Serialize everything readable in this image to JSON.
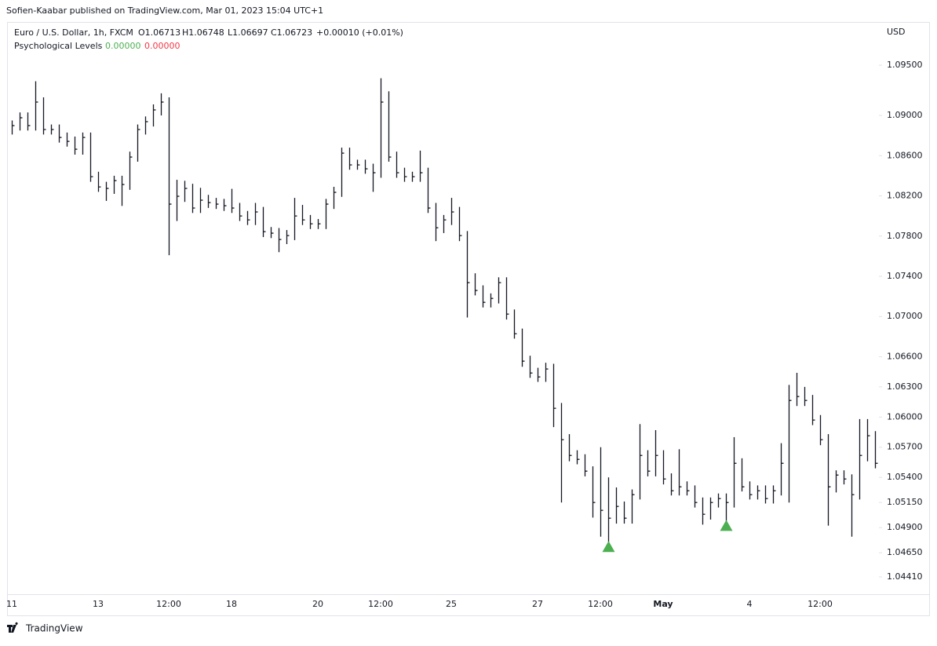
{
  "header": {
    "publisher": "Sofien-Kaabar published on TradingView.com, Mar 01, 2023 15:04 UTC+1",
    "symbol": "Euro / U.S. Dollar, 1h, FXCM",
    "ohlc": [
      "O1.06713",
      "H1.06748",
      "L1.06697",
      "C1.06723"
    ],
    "change": "+0.00010 (+0.01%)",
    "indicator": "Psychological Levels",
    "indicator_values": [
      "0.00000",
      "0.00000"
    ],
    "currency": "USD"
  },
  "footer": "TradingView",
  "chart_data": {
    "type": "ohlc",
    "color": "#131722",
    "signal_color": "#4caf50",
    "categories": [
      "11",
      null,
      null,
      null,
      null,
      null,
      null,
      null,
      null,
      null,
      null,
      "13",
      null,
      null,
      null,
      null,
      null,
      null,
      null,
      null,
      "12:00",
      null,
      null,
      null,
      null,
      null,
      null,
      null,
      "18",
      null,
      null,
      null,
      null,
      null,
      null,
      null,
      null,
      null,
      null,
      "20",
      null,
      null,
      null,
      null,
      null,
      null,
      null,
      "12:00",
      null,
      null,
      null,
      null,
      null,
      null,
      null,
      null,
      "25",
      null,
      null,
      null,
      null,
      null,
      null,
      null,
      null,
      null,
      null,
      "27",
      null,
      null,
      null,
      null,
      null,
      null,
      null,
      "12:00",
      null,
      null,
      null,
      null,
      null,
      null,
      null,
      "May",
      null,
      null,
      null,
      null,
      null,
      null,
      null,
      null,
      null,
      null,
      "4",
      null,
      null,
      null,
      null,
      null,
      null,
      null,
      null,
      "12:00",
      null,
      null,
      null,
      null,
      null,
      null,
      null
    ],
    "high": [
      1.0895,
      1.0903,
      1.0903,
      1.0934,
      1.0918,
      1.0891,
      1.0891,
      1.0883,
      1.0879,
      1.0883,
      1.0883,
      1.0844,
      1.0834,
      1.084,
      1.084,
      1.0864,
      1.0891,
      1.0899,
      1.0911,
      1.0922,
      1.0918,
      1.0836,
      1.0835,
      1.0832,
      1.0828,
      1.0821,
      1.0818,
      1.0817,
      1.0827,
      1.0813,
      1.0805,
      1.0813,
      1.0809,
      1.0789,
      1.0788,
      1.0786,
      1.0818,
      1.0811,
      1.0801,
      1.0797,
      1.0817,
      1.0829,
      1.0868,
      1.0868,
      1.0856,
      1.0856,
      1.0852,
      1.0937,
      1.0924,
      1.0864,
      1.0848,
      1.0844,
      1.0865,
      1.0848,
      1.0813,
      1.0801,
      1.0818,
      1.0809,
      1.0785,
      1.0743,
      1.0731,
      1.0723,
      1.0739,
      1.0739,
      1.0707,
      1.0688,
      1.0661,
      1.0649,
      1.0654,
      1.0653,
      1.0614,
      1.0583,
      1.0567,
      1.0563,
      1.0551,
      1.057,
      1.054,
      1.053,
      1.0516,
      1.0528,
      1.0593,
      1.0567,
      1.0587,
      1.0567,
      1.0544,
      1.0568,
      1.0536,
      1.0532,
      1.052,
      1.052,
      1.0524,
      1.0524,
      1.058,
      1.0559,
      1.0536,
      1.0532,
      1.0532,
      1.0532,
      1.0574,
      1.0632,
      1.0644,
      1.063,
      1.0622,
      1.0602,
      1.0583,
      1.0547,
      1.0547,
      1.0543,
      1.0598,
      1.0598,
      1.0586
    ],
    "low": [
      1.0881,
      1.0885,
      1.0885,
      1.0885,
      1.0881,
      1.0881,
      1.0873,
      1.0869,
      1.0861,
      1.0861,
      1.0834,
      1.0824,
      1.0815,
      1.0822,
      1.081,
      1.0826,
      1.0854,
      1.0881,
      1.0889,
      1.09,
      1.0761,
      1.0795,
      1.0814,
      1.0803,
      1.0803,
      1.0808,
      1.0807,
      1.0805,
      1.0803,
      1.0795,
      1.0791,
      1.0791,
      1.0779,
      1.0778,
      1.0764,
      1.0772,
      1.0776,
      1.0791,
      1.0787,
      1.0787,
      1.0787,
      1.0807,
      1.0819,
      1.0846,
      1.0846,
      1.0842,
      1.0824,
      1.0838,
      1.0854,
      1.0838,
      1.0834,
      1.0834,
      1.0834,
      1.0803,
      1.0775,
      1.0783,
      1.0791,
      1.0775,
      1.0699,
      1.0721,
      1.0709,
      1.0709,
      1.0713,
      1.0697,
      1.0678,
      1.065,
      1.0639,
      1.0635,
      1.0635,
      1.059,
      1.0515,
      1.0556,
      1.0553,
      1.0541,
      1.05,
      1.0481,
      1.0472,
      1.0494,
      1.0494,
      1.0494,
      1.0518,
      1.0541,
      1.0541,
      1.0533,
      1.0522,
      1.0522,
      1.0522,
      1.051,
      1.0493,
      1.0498,
      1.051,
      1.0493,
      1.051,
      1.0526,
      1.0518,
      1.0518,
      1.0514,
      1.0514,
      1.0522,
      1.0515,
      1.0611,
      1.0611,
      1.0592,
      1.0572,
      1.0492,
      1.0525,
      1.0533,
      1.0481,
      1.0518,
      1.0556,
      1.0549
    ],
    "close": [
      1.08899,
      1.08977,
      1.08899,
      1.09133,
      1.0886,
      1.0886,
      1.08781,
      1.08742,
      1.08664,
      1.08781,
      1.08391,
      1.08289,
      1.08274,
      1.08352,
      1.08313,
      1.08586,
      1.0886,
      1.08938,
      1.09055,
      1.09133,
      1.08118,
      1.08196,
      1.08274,
      1.08079,
      1.08157,
      1.08133,
      1.08118,
      1.08102,
      1.08079,
      1.08,
      1.07961,
      1.0804,
      1.07844,
      1.07829,
      1.07766,
      1.07805,
      1.08,
      1.07961,
      1.07922,
      1.07922,
      1.08118,
      1.08235,
      1.08625,
      1.08508,
      1.08508,
      1.08469,
      1.0843,
      1.09133,
      1.08586,
      1.0843,
      1.08391,
      1.08391,
      1.0843,
      1.08079,
      1.07883,
      1.07961,
      1.0804,
      1.07805,
      1.07337,
      1.07259,
      1.07141,
      1.0718,
      1.07337,
      1.07024,
      1.06829,
      1.06556,
      1.06438,
      1.06399,
      1.06478,
      1.06087,
      1.05775,
      1.05618,
      1.05579,
      1.05462,
      1.0515,
      1.05072,
      1.04994,
      1.05111,
      1.04994,
      1.05228,
      1.05618,
      1.05462,
      1.05618,
      1.05384,
      1.05267,
      1.05306,
      1.05267,
      1.0515,
      1.05033,
      1.0515,
      1.05189,
      1.0515,
      1.0554,
      1.05306,
      1.05228,
      1.05267,
      1.05189,
      1.05267,
      1.0554,
      1.06165,
      1.06204,
      1.06165,
      1.0597,
      1.05775,
      1.05306,
      1.05423,
      1.05384,
      1.05228,
      1.05618,
      1.05814,
      1.0554
    ],
    "signals": [
      null,
      null,
      null,
      null,
      null,
      null,
      null,
      null,
      null,
      null,
      null,
      null,
      null,
      null,
      null,
      null,
      null,
      null,
      null,
      null,
      null,
      null,
      null,
      null,
      null,
      null,
      null,
      null,
      null,
      null,
      null,
      null,
      null,
      null,
      null,
      null,
      null,
      null,
      null,
      null,
      null,
      null,
      null,
      null,
      null,
      null,
      null,
      null,
      null,
      null,
      null,
      null,
      null,
      null,
      null,
      null,
      null,
      null,
      null,
      null,
      null,
      null,
      null,
      null,
      null,
      null,
      null,
      null,
      null,
      null,
      null,
      null,
      null,
      null,
      null,
      null,
      1.0472,
      null,
      null,
      null,
      null,
      null,
      null,
      null,
      null,
      null,
      null,
      null,
      null,
      null,
      null,
      1.0493,
      null,
      null,
      null,
      null,
      null,
      null,
      null,
      null,
      null,
      null,
      null,
      null,
      null,
      null,
      null,
      null,
      null
    ],
    "ylim": [
      1.04238,
      1.09914
    ],
    "yticks": [
      {
        "value": 1.095,
        "label": "1.09500"
      },
      {
        "value": 1.09,
        "label": "1.09000"
      },
      {
        "value": 1.086,
        "label": "1.08600"
      },
      {
        "value": 1.082,
        "label": "1.08200"
      },
      {
        "value": 1.078,
        "label": "1.07800"
      },
      {
        "value": 1.074,
        "label": "1.07400"
      },
      {
        "value": 1.07,
        "label": "1.07000"
      },
      {
        "value": 1.066,
        "label": "1.06600"
      },
      {
        "value": 1.063,
        "label": "1.06300"
      },
      {
        "value": 1.06,
        "label": "1.06000"
      },
      {
        "value": 1.057,
        "label": "1.05700"
      },
      {
        "value": 1.054,
        "label": "1.05400"
      },
      {
        "value": 1.0515,
        "label": "1.05150"
      },
      {
        "value": 1.049,
        "label": "1.04900"
      },
      {
        "value": 1.0465,
        "label": "1.04650"
      },
      {
        "value": 1.0441,
        "label": "1.04410"
      }
    ]
  }
}
